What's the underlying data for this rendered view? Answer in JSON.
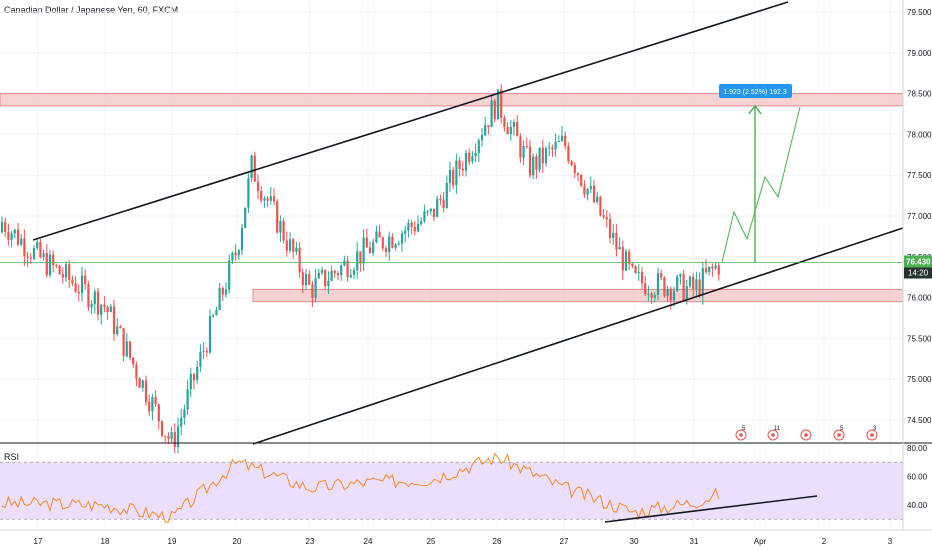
{
  "header": {
    "title": "Canadian Dollar / Japanese Yen, 60, FXCM"
  },
  "price_badge": {
    "value": "76.430",
    "countdown": "14:20",
    "color": "#4caf50"
  },
  "measure_label": "1.923 (2.52%) 192.3",
  "rsi_label": "RSI",
  "colors": {
    "up": "#26a69a",
    "down": "#ef5350",
    "zone_fill": "#f4c7c7",
    "zone_border": "#e58b8b",
    "rsi_line": "#f28a2e",
    "rsi_band": "#e9dcfb",
    "measure": "#2196f3"
  },
  "events": [
    {
      "icon": "flag-icon",
      "count": "5"
    },
    {
      "icon": "flag-icon",
      "count": "11"
    },
    {
      "icon": "flag-icon",
      "count": ""
    },
    {
      "icon": "flag-icon",
      "count": "5"
    },
    {
      "icon": "flag-icon",
      "count": "3"
    }
  ],
  "chart_data": {
    "type": "line",
    "price_axis": {
      "ticks": [
        "79.500",
        "79.000",
        "78.500",
        "78.000",
        "77.500",
        "77.000",
        "76.500",
        "76.000",
        "75.500",
        "75.000",
        "74.500"
      ]
    },
    "time_axis": {
      "ticks": [
        "17",
        "18",
        "19",
        "20",
        "23",
        "24",
        "25",
        "26",
        "27",
        "30",
        "31",
        "Apr",
        "2",
        "3"
      ]
    },
    "rsi_axis": {
      "ticks": [
        "80.00",
        "60.00",
        "40.00"
      ],
      "band": [
        30,
        70
      ]
    },
    "price_series": [
      {
        "x": "17",
        "y": 76.5
      },
      {
        "x": "18",
        "y": 75.9
      },
      {
        "x": "19",
        "y": 74.2
      },
      {
        "x": "20",
        "y": 76.6
      },
      {
        "x": "20.6",
        "y": 77.6
      },
      {
        "x": "23",
        "y": 76.1
      },
      {
        "x": "24",
        "y": 76.6
      },
      {
        "x": "25",
        "y": 77.0
      },
      {
        "x": "26",
        "y": 78.4
      },
      {
        "x": "26.5",
        "y": 77.6
      },
      {
        "x": "27",
        "y": 77.9
      },
      {
        "x": "30",
        "y": 76.2
      },
      {
        "x": "31",
        "y": 76.1
      },
      {
        "x": "31.4",
        "y": 76.43
      }
    ],
    "rsi_series": [
      {
        "x": "17",
        "y": 41
      },
      {
        "x": "18",
        "y": 40
      },
      {
        "x": "19",
        "y": 31
      },
      {
        "x": "20",
        "y": 70
      },
      {
        "x": "23",
        "y": 52
      },
      {
        "x": "24",
        "y": 56
      },
      {
        "x": "25",
        "y": 58
      },
      {
        "x": "26",
        "y": 74
      },
      {
        "x": "27",
        "y": 52
      },
      {
        "x": "30",
        "y": 35
      },
      {
        "x": "31",
        "y": 42
      },
      {
        "x": "31.4",
        "y": 48
      }
    ],
    "annotations": {
      "resistance_zone": [
        78.35,
        78.5
      ],
      "support_zone": [
        75.95,
        76.1
      ],
      "measure_from": 76.43,
      "measure_to": 78.35
    }
  }
}
